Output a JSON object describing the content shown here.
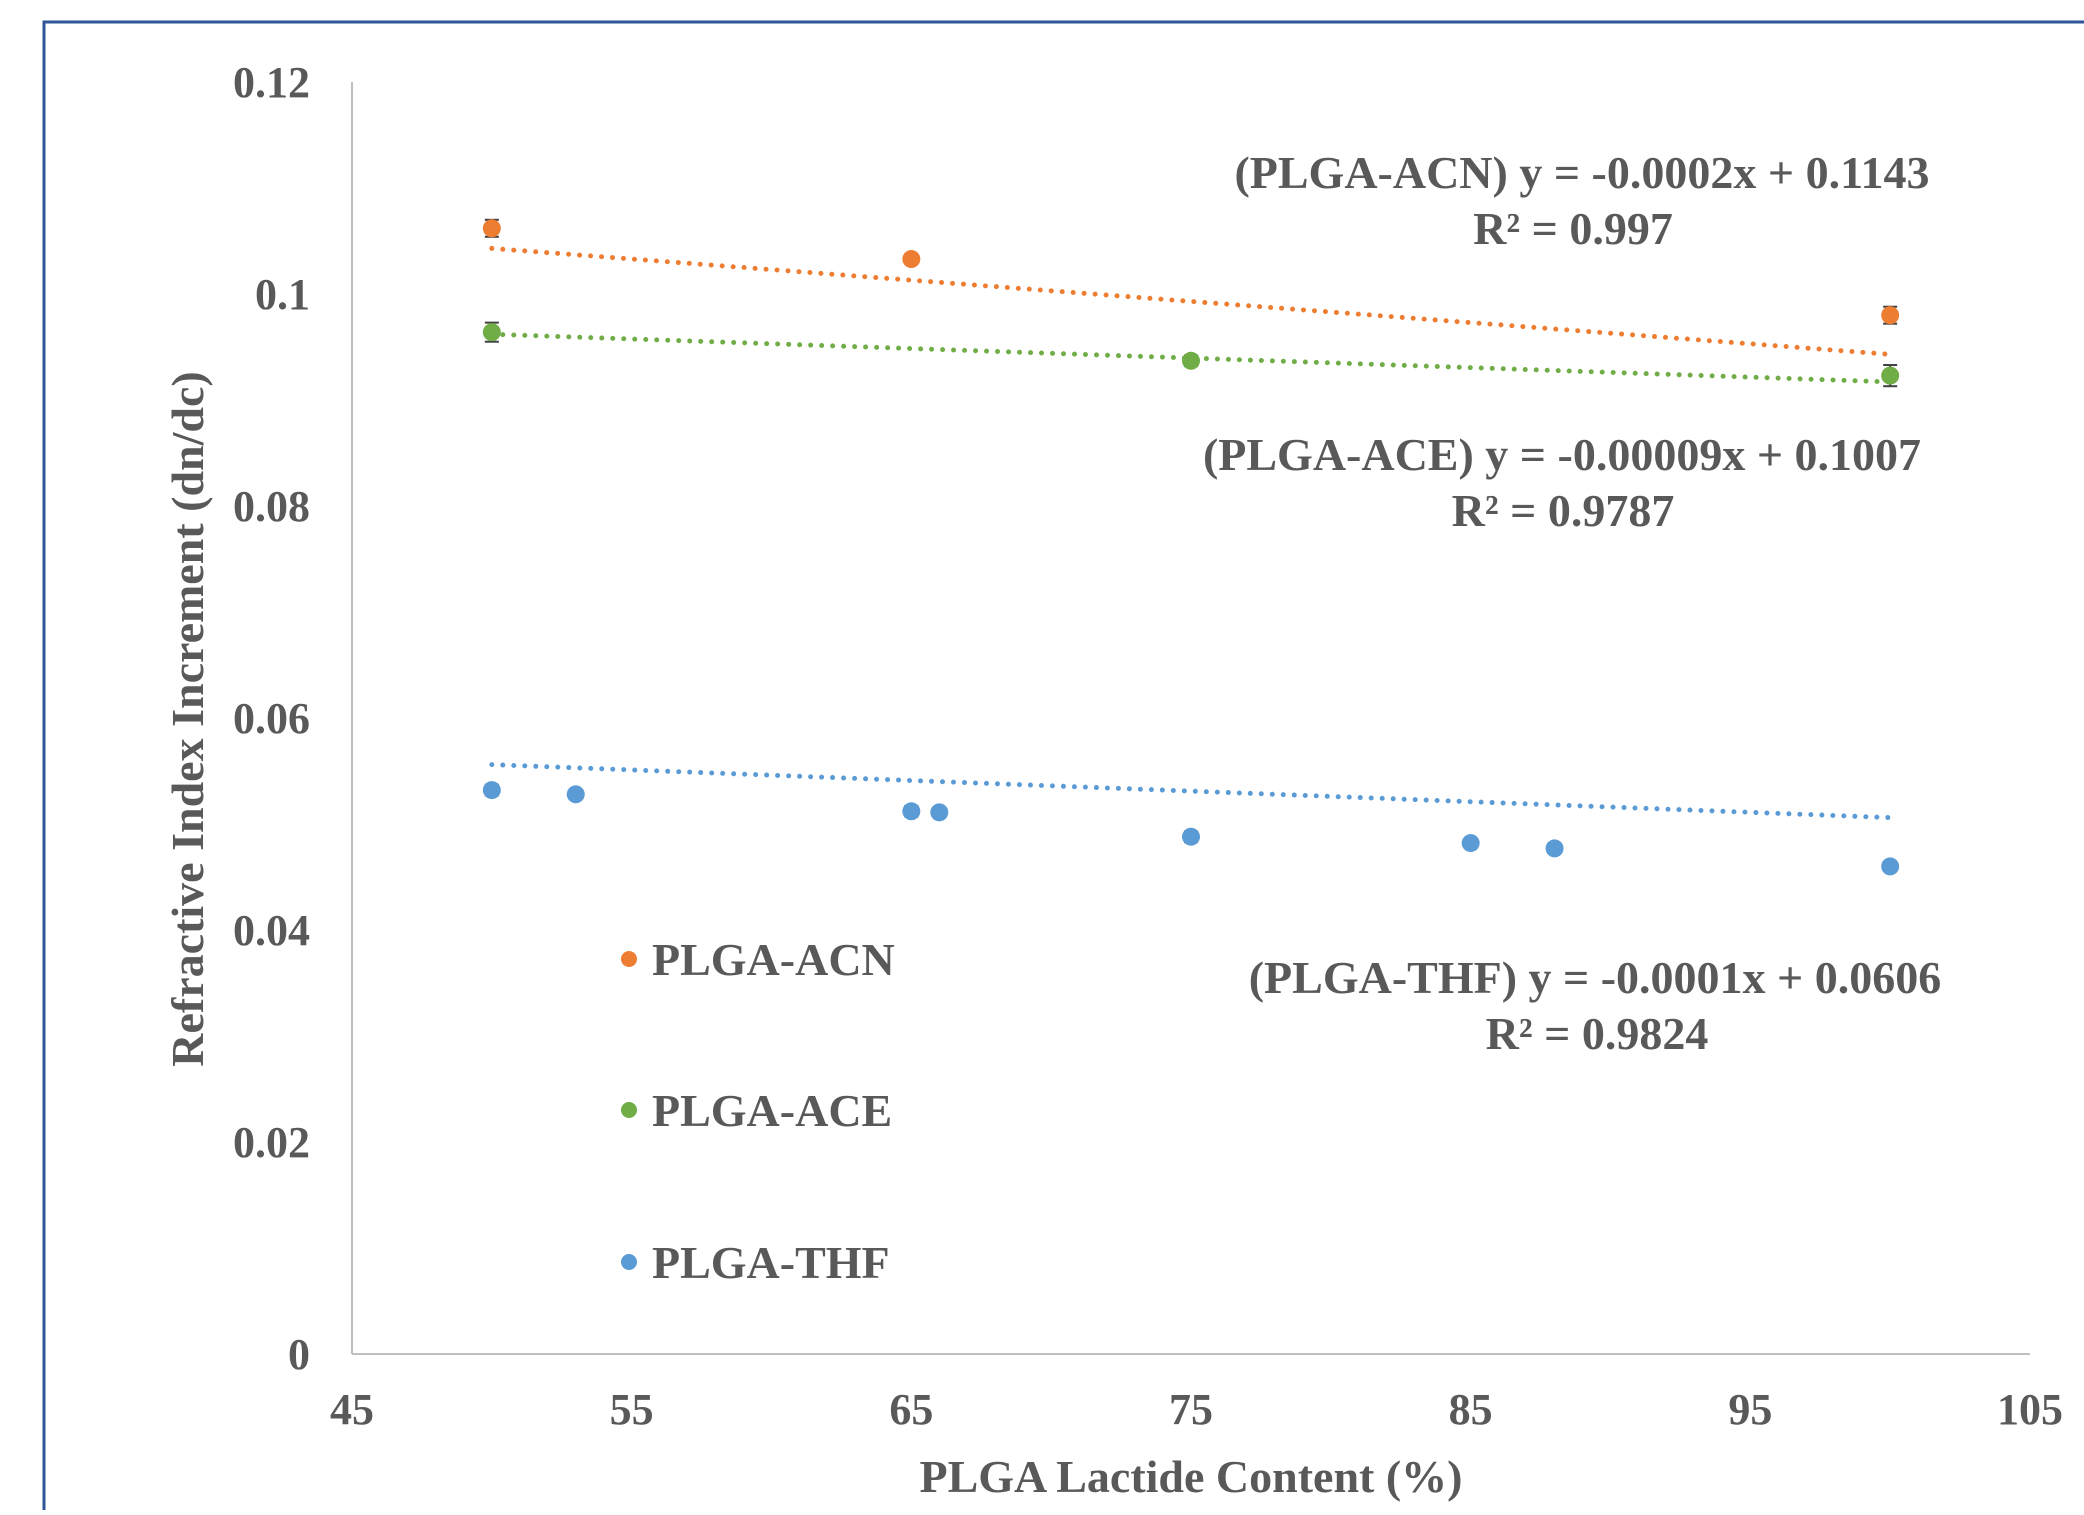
{
  "chart_data": {
    "type": "scatter",
    "title": "",
    "xlabel": "PLGA Lactide Content (%)",
    "ylabel": "Refractive Index Increment (dn/dc)",
    "xlim": [
      45,
      105
    ],
    "ylim": [
      0,
      0.12
    ],
    "x_ticks": [
      45,
      55,
      65,
      75,
      85,
      95,
      105
    ],
    "y_ticks": [
      0,
      0.02,
      0.04,
      0.06,
      0.08,
      0.1,
      0.12
    ],
    "x_tick_labels": [
      "45",
      "55",
      "65",
      "75",
      "85",
      "95",
      "105"
    ],
    "y_tick_labels": [
      "0",
      "0.02",
      "0.04",
      "0.06",
      "0.08",
      "0.1",
      "0.12"
    ],
    "grid": false,
    "legend_position": "lower-left",
    "series": [
      {
        "name": "PLGA-ACN",
        "color": "#ED7D31",
        "x": [
          50,
          65,
          100
        ],
        "y": [
          0.1062,
          0.1033,
          0.098
        ],
        "error": [
          0.0008,
          0.0004,
          0.0008
        ],
        "trendline": {
          "slope": -0.0002,
          "intercept": 0.1143,
          "x_range": [
            50,
            100
          ],
          "equation": "(PLGA-ACN)  y = -0.0002x + 0.1143",
          "r2": "R² = 0.997"
        }
      },
      {
        "name": "PLGA-ACE",
        "color": "#70AD47",
        "x": [
          50,
          75,
          100
        ],
        "y": [
          0.0964,
          0.0937,
          0.0923
        ],
        "error": [
          0.0009,
          0.0005,
          0.001
        ],
        "trendline": {
          "slope": -9e-05,
          "intercept": 0.1007,
          "x_range": [
            50,
            100
          ],
          "equation": "(PLGA-ACE)  y = -0.00009x + 0.1007",
          "r2": "R² = 0.9787"
        }
      },
      {
        "name": "PLGA-THF",
        "color": "#5B9BD5",
        "x": [
          50,
          53,
          65,
          66,
          75,
          85,
          88,
          100
        ],
        "y": [
          0.0532,
          0.0528,
          0.0512,
          0.0511,
          0.0488,
          0.0482,
          0.0477,
          0.046
        ],
        "error": [
          0.0005,
          0.0004,
          0.0005,
          0.0004,
          0.0005,
          0.0004,
          0.0004,
          0.0004
        ],
        "trendline": {
          "slope": -0.0001,
          "intercept": 0.0606,
          "x_range": [
            50,
            100
          ],
          "equation": "(PLGA-THF)  y = -0.0001x + 0.0606",
          "r2": "R² = 0.9824"
        }
      }
    ]
  }
}
